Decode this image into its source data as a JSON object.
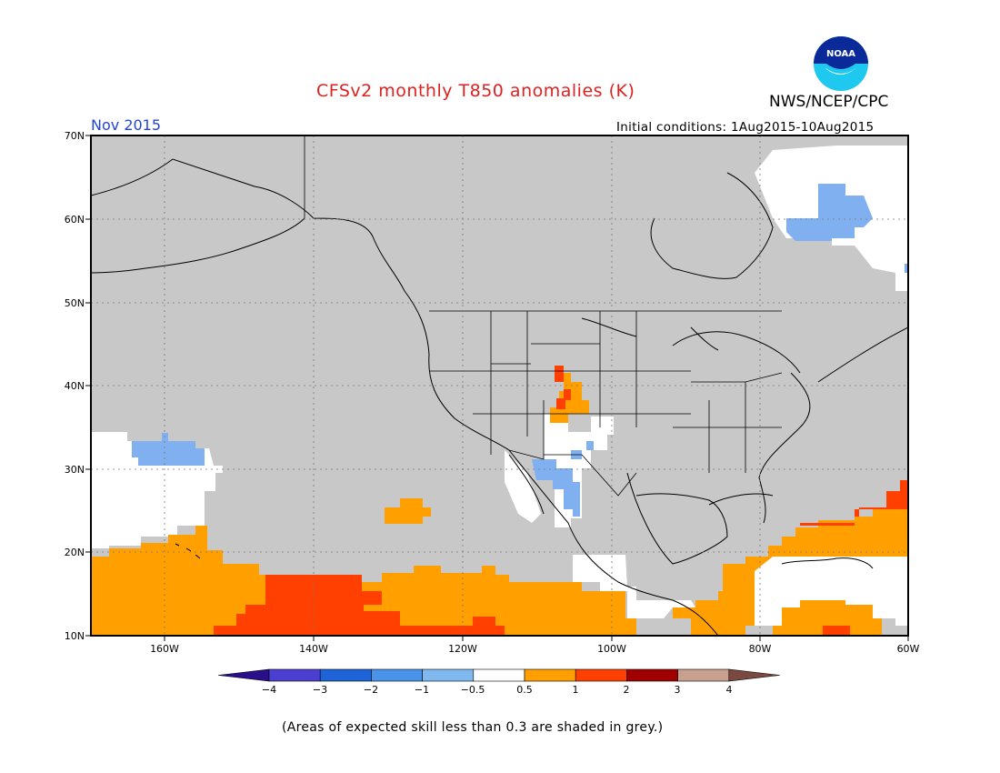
{
  "title": "CFSv2 monthly T850 anomalies (K)",
  "organization": "NWS/NCEP/CPC",
  "logo_text": "NOAA",
  "valid_month": "Nov 2015",
  "initial_conditions": "Initial conditions: 1Aug2015-10Aug2015",
  "footnote": "(Areas of expected skill less than 0.3 are shaded in grey.)",
  "colors": {
    "title": "#dd2222",
    "month": "#2244dd",
    "low_skill_grey": "#c8c8c8",
    "neutral": "#ffffff",
    "plus_0_5_to_1": "#ff9f00",
    "plus_1_to_2": "#ff4000",
    "minus_0_5_to_1": "#80b0f0",
    "coastline": "#000000",
    "gridline": "#777777"
  },
  "map": {
    "lat_range": [
      10,
      70
    ],
    "lon_range": [
      -170,
      -60
    ],
    "lat_labels": [
      "70N",
      "60N",
      "50N",
      "40N",
      "30N",
      "20N",
      "10N"
    ],
    "lon_labels": [
      "160W",
      "140W",
      "120W",
      "100W",
      "80W",
      "60W"
    ]
  },
  "anomaly_regions": [
    {
      "name": "Tropical eastern Pacific",
      "category": "+0.5 to +1"
    },
    {
      "name": "Central tropical Pacific core",
      "category": "+1 to +2"
    },
    {
      "name": "Caribbean / western Atlantic",
      "category": "+0.5 to +1"
    },
    {
      "name": "Subtropical Atlantic",
      "category": "+1 to +2"
    },
    {
      "name": "Southern Rockies",
      "category": "+1 to +2"
    },
    {
      "name": "Northwest Mexico",
      "category": "-0.5 to -1"
    },
    {
      "name": "North of Hawaii",
      "category": "-0.5 to -1"
    },
    {
      "name": "Northern Quebec / Labrador",
      "category": "-0.5 to -1"
    }
  ],
  "colorbar": {
    "labels": [
      "−4",
      "−3",
      "−2",
      "−1",
      "−0.5",
      "0.5",
      "1",
      "2",
      "3",
      "4"
    ],
    "colors": [
      "#2a0f8a",
      "#4a3fd0",
      "#1e63d8",
      "#4a93ea",
      "#80b8f0",
      "#ffffff",
      "#ff9f00",
      "#ff4000",
      "#a00000",
      "#c8a090",
      "#7a4a40"
    ]
  }
}
